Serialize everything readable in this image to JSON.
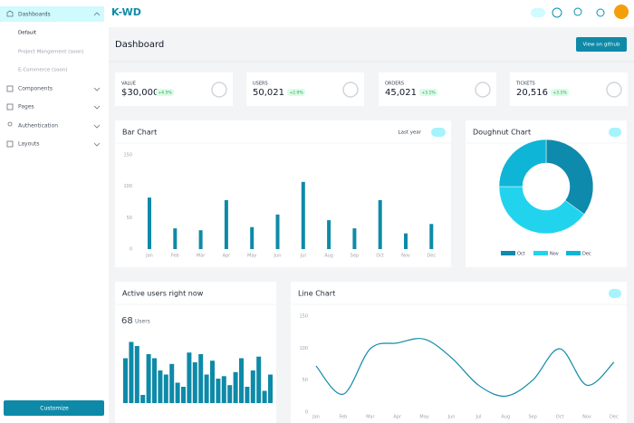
{
  "sidebar": {
    "items": [
      "Dashboards",
      "Default",
      "Project Mangement (soon)",
      "E-Commerce (soon)",
      "Components",
      "Pages",
      "Authentication",
      "Layouts"
    ],
    "button": "Customize"
  },
  "header": {
    "brand": "K-WD",
    "title": "Dashboard",
    "button": "View on github"
  },
  "stats": [
    {
      "label": "VALUE",
      "value": "$30,000",
      "change": "+4.5%"
    },
    {
      "label": "USERS",
      "value": "50,021",
      "change": "+2.0%"
    },
    {
      "label": "ORDERS",
      "value": "45,021",
      "change": "+3.1%"
    },
    {
      "label": "TICKETS",
      "value": "20,516",
      "change": "+3.1%"
    }
  ],
  "chart_data": [
    {
      "type": "bar",
      "title": "Bar Chart",
      "annotations": [
        "Last year"
      ],
      "categories": [
        "Jan",
        "Feb",
        "Mar",
        "Apr",
        "May",
        "Jun",
        "Jul",
        "Aug",
        "Sep",
        "Oct",
        "Nov",
        "Dec"
      ],
      "values": [
        82,
        33,
        30,
        78,
        35,
        55,
        107,
        46,
        33,
        78,
        25,
        40
      ],
      "color": "#0e8aa8",
      "ylim": [
        0,
        150
      ],
      "yticks": [
        0,
        50,
        100,
        150
      ]
    },
    {
      "type": "pie",
      "title": "Doughnut Chart",
      "categories": [
        "Oct",
        "Nov",
        "Dec"
      ],
      "values": [
        35,
        40,
        25
      ],
      "colors": [
        "#0e8aad",
        "#22d3ee",
        "#0fb5d6"
      ]
    },
    {
      "type": "bar",
      "title": "Active users right now",
      "annotations": [
        "68",
        "Users"
      ],
      "values": [
        55,
        75,
        70,
        10,
        60,
        55,
        40,
        35,
        48,
        25,
        20,
        62,
        50,
        60,
        35,
        52,
        30,
        33,
        22,
        38,
        55,
        20,
        40,
        57,
        15,
        35
      ],
      "color": "#0e8aa8"
    },
    {
      "type": "line",
      "title": "Line Chart",
      "categories": [
        "Jan",
        "Feb",
        "Mar",
        "Apr",
        "May",
        "Jun",
        "Jul",
        "Aug",
        "Sep",
        "Oct",
        "Nov",
        "Dec"
      ],
      "values": [
        72,
        28,
        99,
        108,
        114,
        85,
        42,
        25,
        50,
        99,
        42,
        78
      ],
      "color": "#0e8aa8",
      "ylim": [
        0,
        150
      ],
      "yticks": [
        0,
        50,
        100,
        150
      ]
    }
  ]
}
